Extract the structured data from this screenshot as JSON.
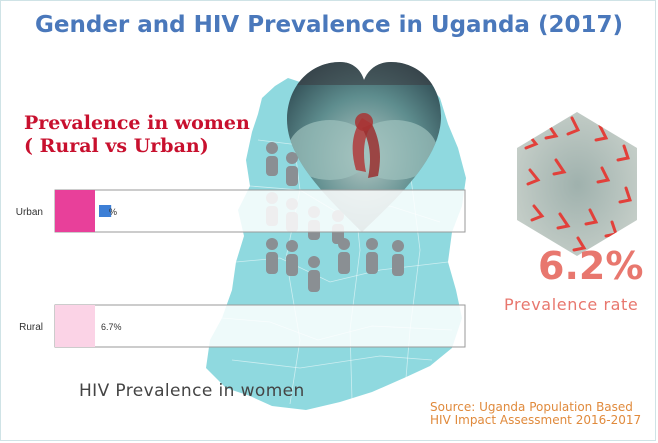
{
  "title": "Gender and HIV Prevalence in Uganda (2017)",
  "subhead": {
    "line1": "Prevalence in women",
    "line2": "( Rural vs Urban)"
  },
  "caption": "HIV Prevalence in women",
  "highlight": {
    "value": "6.2%",
    "label": "Prevalence rate"
  },
  "source": {
    "line1": "Source: Uganda Population Based",
    "line2": "HIV Impact Assessment 2016-2017"
  },
  "icons": [
    "map-of-uganda-icon",
    "person-icon",
    "heart-hands-photo-icon",
    "hexagon-ribbons-photo-icon"
  ],
  "colors": {
    "title": "#4a78bb",
    "map": "#8fd9df",
    "subhead": "#c8102e",
    "urban": "#e8409a",
    "rural": "#fbd3e6",
    "value_bar": "#3d7fd6",
    "highlight": "#e8776e",
    "source": "#e08a3c"
  },
  "chart_data": {
    "type": "bar",
    "orientation": "horizontal",
    "title": "Prevalence in women ( Rural vs Urban)",
    "categories": [
      "Urban",
      "Rural"
    ],
    "values": [
      9.0,
      6.7
    ],
    "value_labels": [
      "%",
      "6.7%"
    ],
    "xlim": [
      0,
      100
    ],
    "xlabel": "HIV Prevalence in women",
    "ylabel": "",
    "grid": false,
    "legend": "none"
  }
}
